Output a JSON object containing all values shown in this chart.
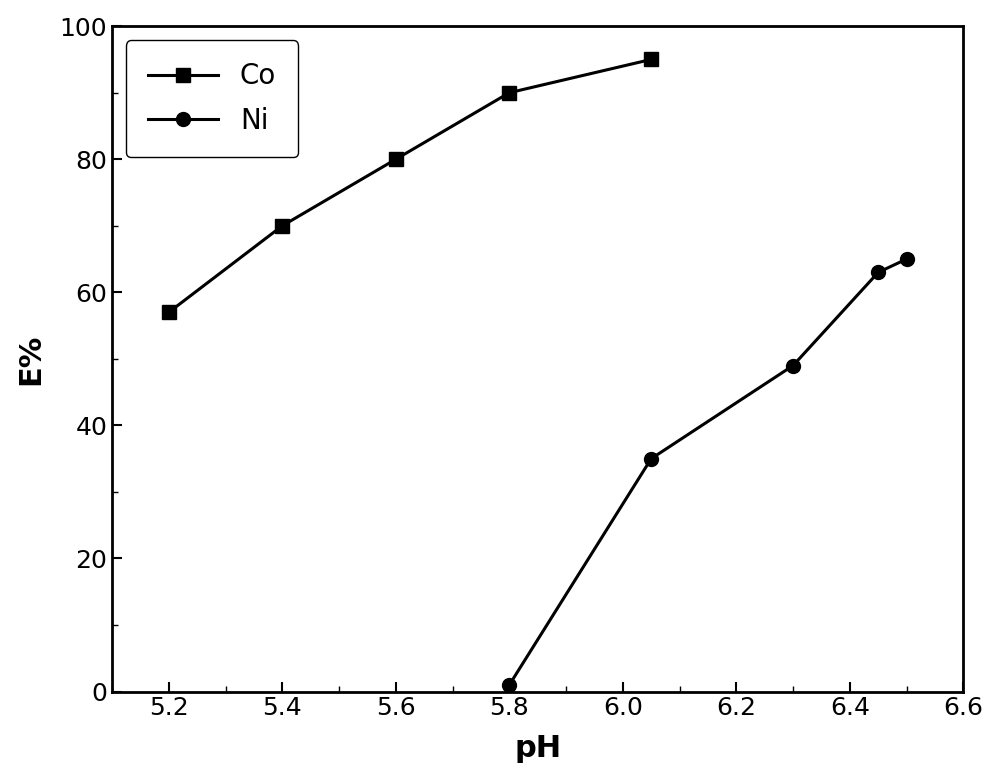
{
  "co_x": [
    5.2,
    5.4,
    5.6,
    5.8,
    6.05
  ],
  "co_y": [
    57,
    70,
    80,
    90,
    95
  ],
  "ni_x": [
    5.8,
    6.05,
    6.3,
    6.45,
    6.5
  ],
  "ni_y": [
    1,
    35,
    49,
    63,
    65
  ],
  "xlabel": "pH",
  "ylabel": "E%",
  "xlim": [
    5.1,
    6.6
  ],
  "ylim": [
    0,
    100
  ],
  "xticks": [
    5.2,
    5.4,
    5.6,
    5.8,
    6.0,
    6.2,
    6.4,
    6.6
  ],
  "yticks": [
    0,
    20,
    40,
    60,
    80,
    100
  ],
  "legend_co": "Co",
  "legend_ni": "Ni",
  "line_color": "#000000",
  "bg_color": "#ffffff",
  "fontsize_ticks": 18,
  "fontsize_labels": 22,
  "fontsize_legend": 20,
  "linewidth": 2.2,
  "markersize_square": 10,
  "markersize_circle": 10
}
